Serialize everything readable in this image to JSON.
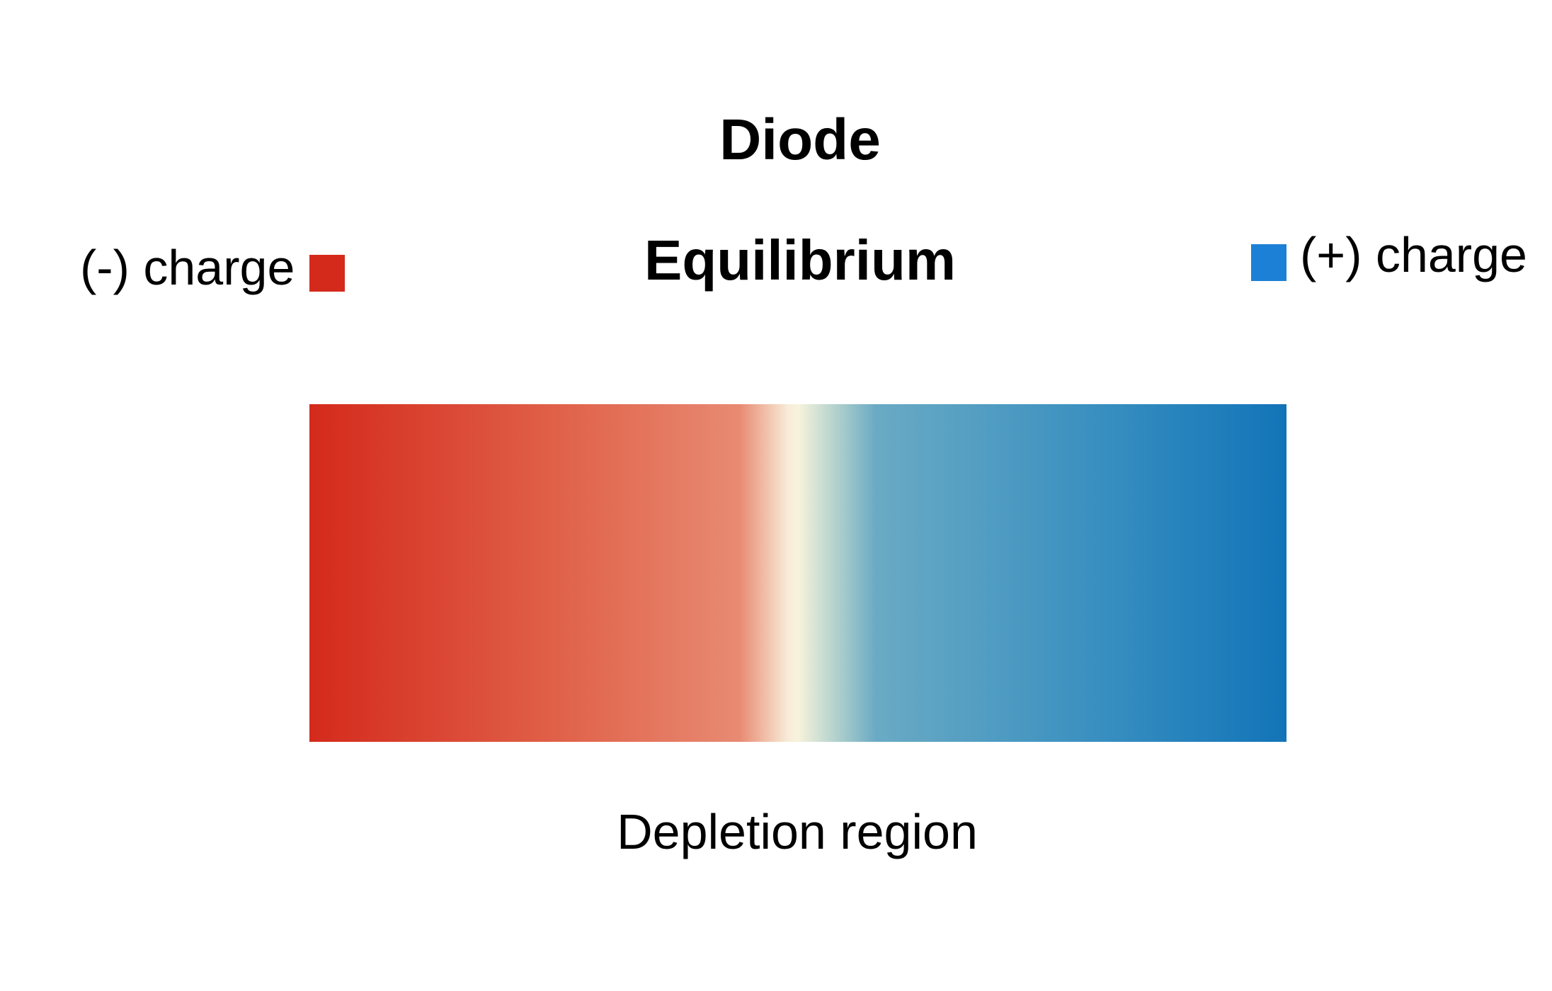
{
  "diagram": {
    "title": "Diode",
    "subtitle": "Equilibrium",
    "legend": {
      "negative": {
        "label": "(-) charge",
        "color": "#d42a1c"
      },
      "positive": {
        "label": "(+) charge",
        "color": "#1c80d6"
      }
    },
    "bar": {
      "gradient_stops": [
        {
          "color": "#d42a1c",
          "offset": 0.0
        },
        {
          "color": "#e06048",
          "offset": 0.25
        },
        {
          "color": "#e88a72",
          "offset": 0.44
        },
        {
          "color": "#f8ecd8",
          "offset": 0.49
        },
        {
          "color": "#f7f3dc",
          "offset": 0.5
        },
        {
          "color": "#b0d0cc",
          "offset": 0.54
        },
        {
          "color": "#6aaac4",
          "offset": 0.58
        },
        {
          "color": "#3a90c0",
          "offset": 0.8
        },
        {
          "color": "#1274b8",
          "offset": 1.0
        }
      ]
    },
    "region_label": "Depletion region"
  }
}
